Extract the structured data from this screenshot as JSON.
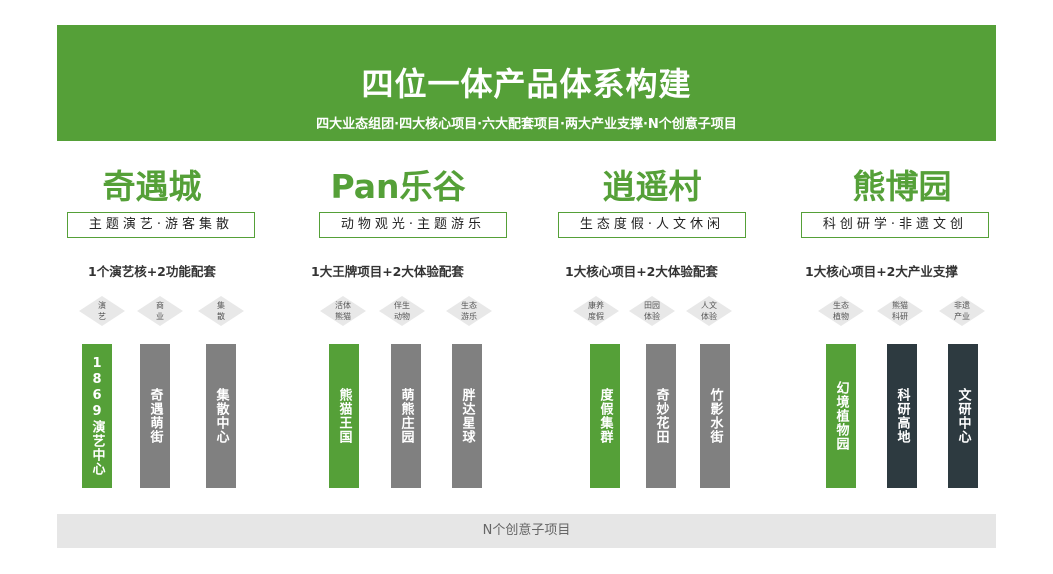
{
  "header": {
    "title": "四位一体产品体系构建",
    "subtitle": "四大业态组团·四大核心项目·六大配套项目·两大产业支撑·N个创意子项目"
  },
  "colors": {
    "green": "#55a038",
    "gray": "#808080",
    "dark": "#2d3a40",
    "diamond": "#e8e8e8"
  },
  "columns": [
    {
      "title": "奇遇城",
      "tag": "主题演艺·游客集散",
      "subtitle": "1个演艺核+2功能配套",
      "diamonds": [
        "演\n艺",
        "商\n业",
        "集\n散"
      ],
      "bars": [
        {
          "label": "1869演艺中心",
          "color": "green"
        },
        {
          "label": "奇遇萌街",
          "color": "gray"
        },
        {
          "label": "集散中心",
          "color": "gray"
        }
      ]
    },
    {
      "title": "Pan乐谷",
      "tag": "动物观光·主题游乐",
      "subtitle": "1大王牌项目+2大体验配套",
      "diamonds": [
        "活体\n熊猫",
        "伴生\n动物",
        "生态\n游乐"
      ],
      "bars": [
        {
          "label": "熊猫王国",
          "color": "green"
        },
        {
          "label": "萌熊庄园",
          "color": "gray"
        },
        {
          "label": "胖达星球",
          "color": "gray"
        }
      ]
    },
    {
      "title": "逍遥村",
      "tag": "生态度假·人文休闲",
      "subtitle": "1大核心项目+2大体验配套",
      "diamonds": [
        "康养\n度假",
        "田园\n体验",
        "人文\n体验"
      ],
      "bars": [
        {
          "label": "度假集群",
          "color": "green"
        },
        {
          "label": "奇妙花田",
          "color": "gray"
        },
        {
          "label": "竹影水街",
          "color": "gray"
        }
      ]
    },
    {
      "title": "熊博园",
      "tag": "科创研学·非遗文创",
      "subtitle": "1大核心项目+2大产业支撑",
      "diamonds": [
        "生态\n植物",
        "熊猫\n科研",
        "非遗\n产业"
      ],
      "bars": [
        {
          "label": "幻境植物园",
          "color": "green"
        },
        {
          "label": "科研高地",
          "color": "dark"
        },
        {
          "label": "文研中心",
          "color": "dark"
        }
      ]
    }
  ],
  "footer": {
    "label": "N个创意子项目"
  }
}
